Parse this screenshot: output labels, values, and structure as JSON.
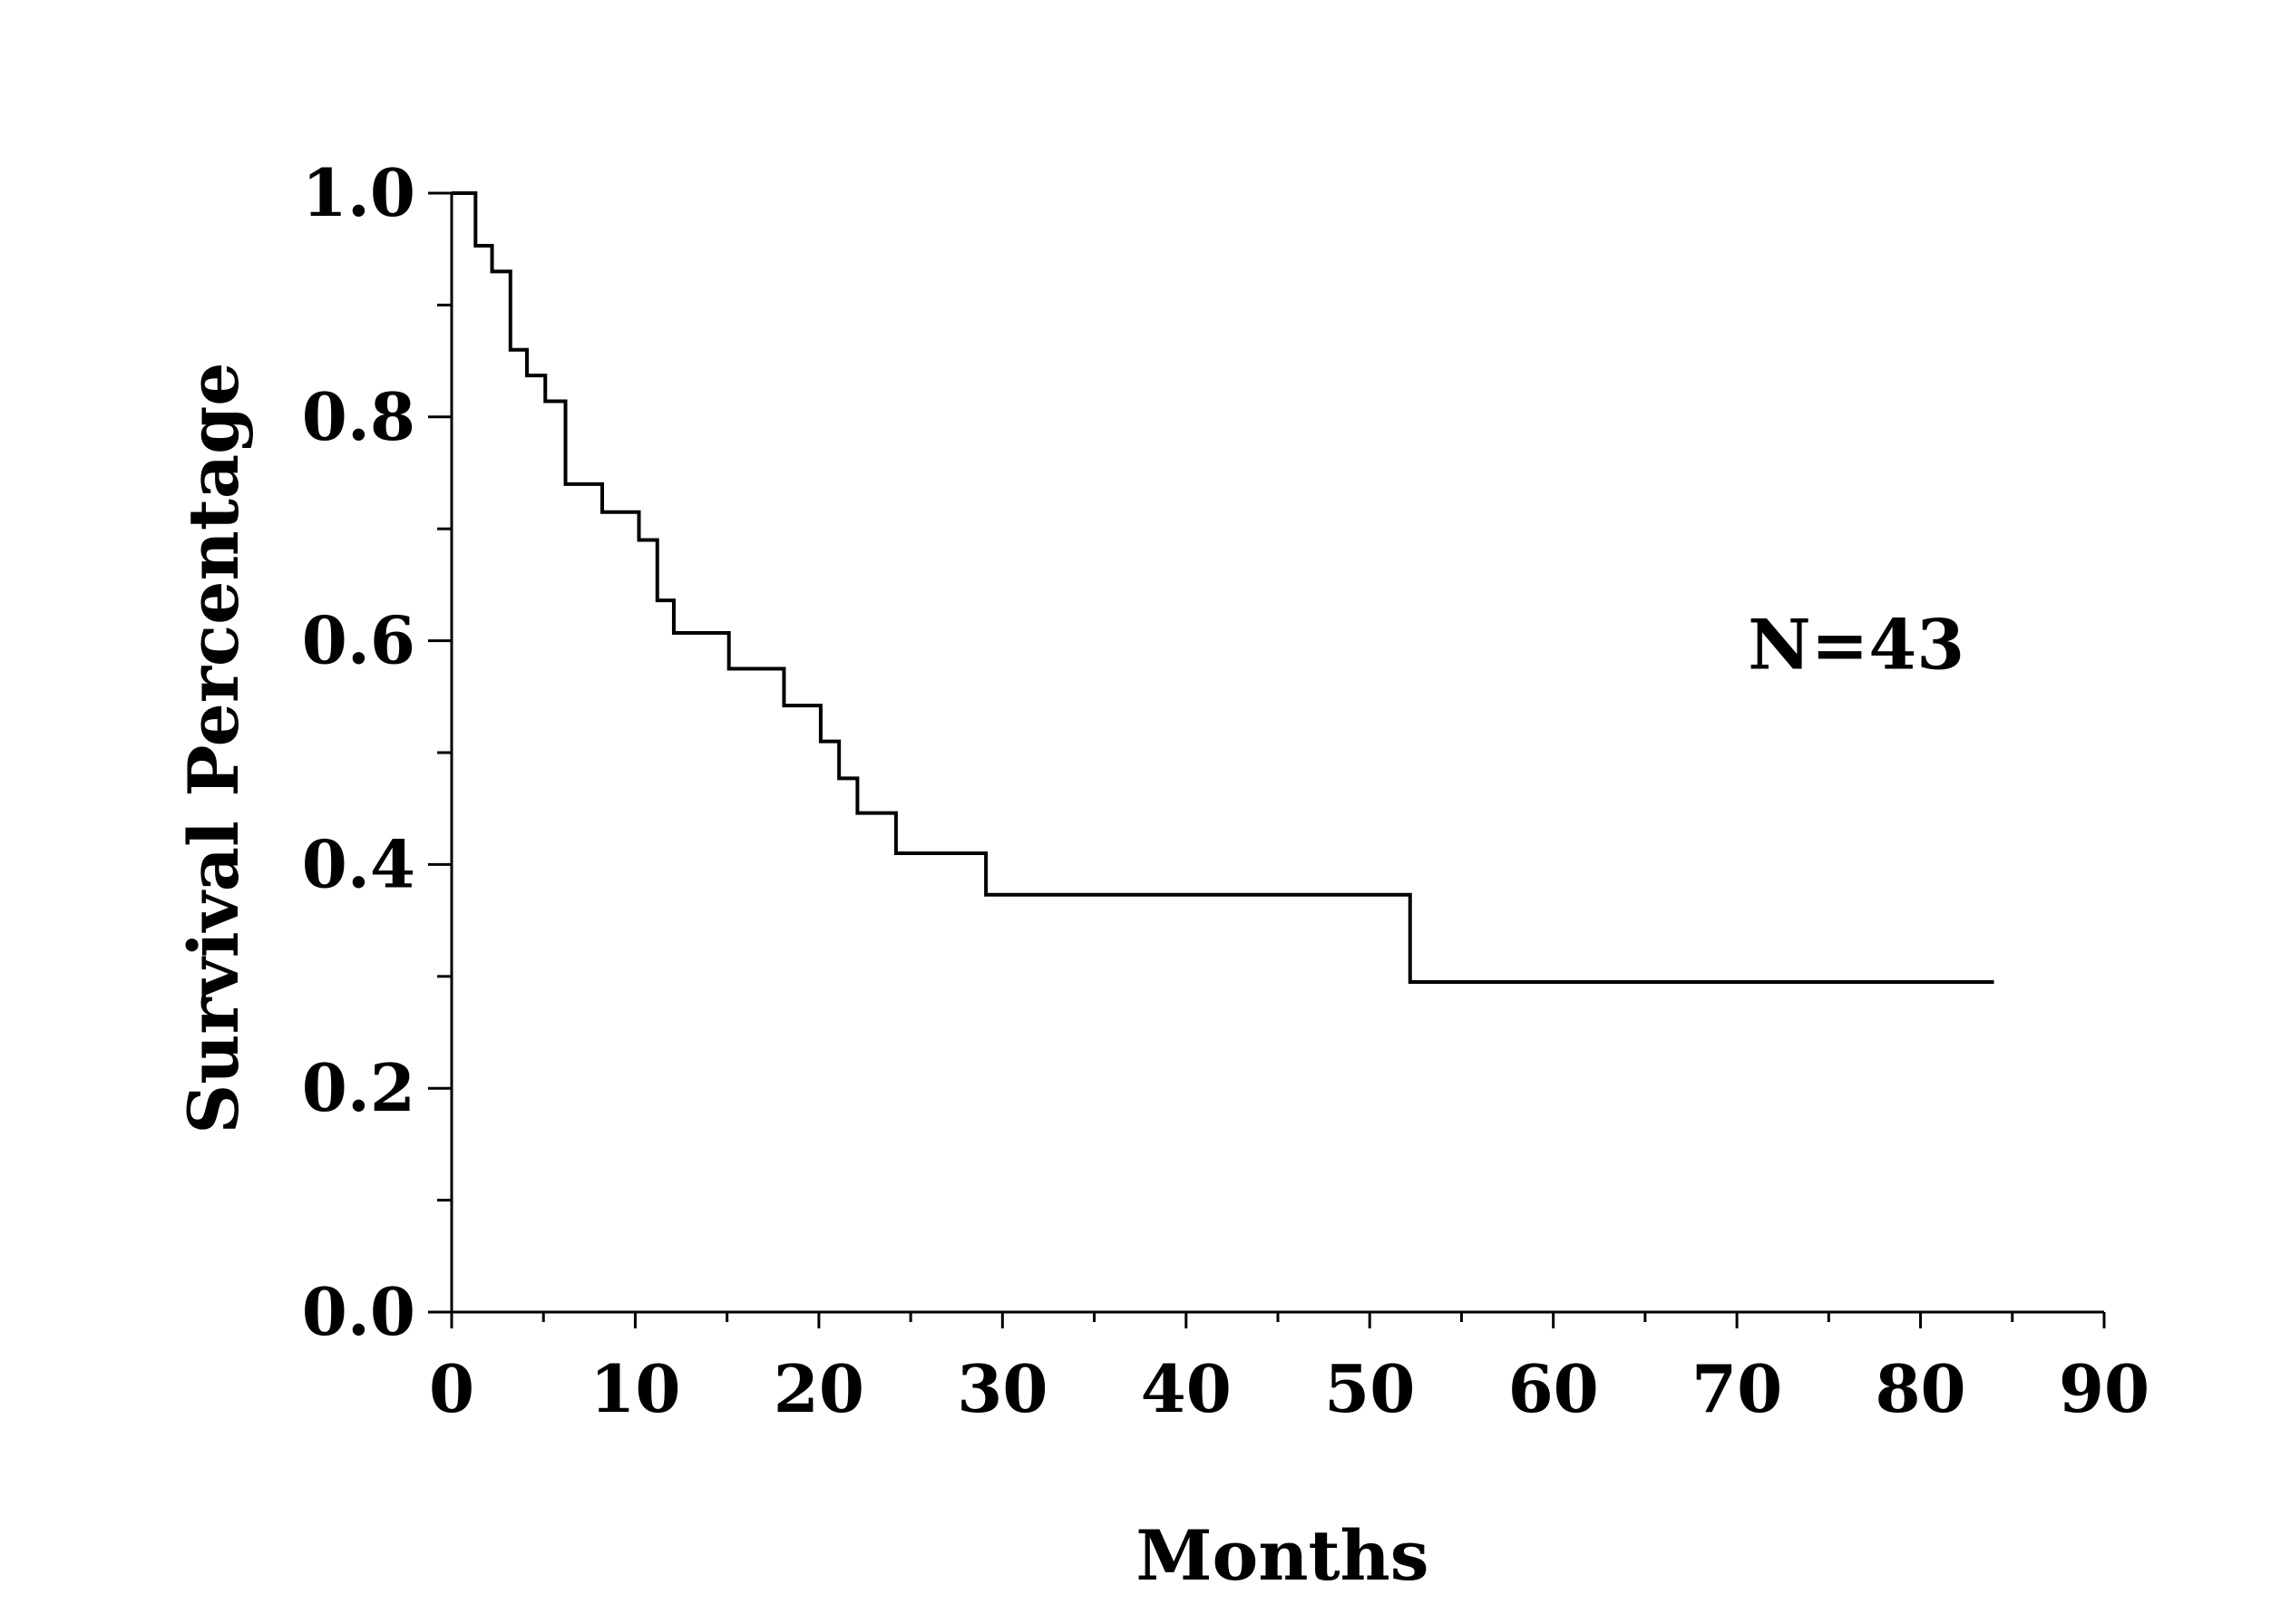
{
  "chart_data": {
    "type": "line",
    "step": "post",
    "title": "",
    "xlabel": "Months",
    "ylabel": "Survival Percentage",
    "xlim": [
      0,
      90
    ],
    "ylim": [
      0,
      1.0
    ],
    "x_ticks": [
      0,
      10,
      20,
      30,
      40,
      50,
      60,
      70,
      80,
      90
    ],
    "x_tick_labels": [
      "0",
      "10",
      "20",
      "30",
      "40",
      "50",
      "60",
      "70",
      "80",
      "90"
    ],
    "y_ticks": [
      0.0,
      0.2,
      0.4,
      0.6,
      0.8,
      1.0
    ],
    "y_tick_labels": [
      "0.0",
      "0.2",
      "0.4",
      "0.6",
      "0.8",
      "1.0"
    ],
    "x_minor_step": 5,
    "y_minor_step": 0.1,
    "annotation": "N=43",
    "grid": false,
    "series": [
      {
        "x": [
          0.3,
          1.3,
          2.2,
          3.2,
          4.1,
          5.1,
          6.2,
          8.2,
          10.2,
          11.2,
          12.1,
          15.1,
          18.1,
          20.1,
          21.1,
          22.1,
          24.2,
          29.1,
          52.2,
          84.0
        ],
        "y": [
          1.0,
          0.953,
          0.93,
          0.86,
          0.837,
          0.814,
          0.74,
          0.715,
          0.69,
          0.636,
          0.607,
          0.575,
          0.542,
          0.51,
          0.477,
          0.446,
          0.41,
          0.373,
          0.295,
          0.295
        ],
        "color": "#000000"
      }
    ]
  }
}
